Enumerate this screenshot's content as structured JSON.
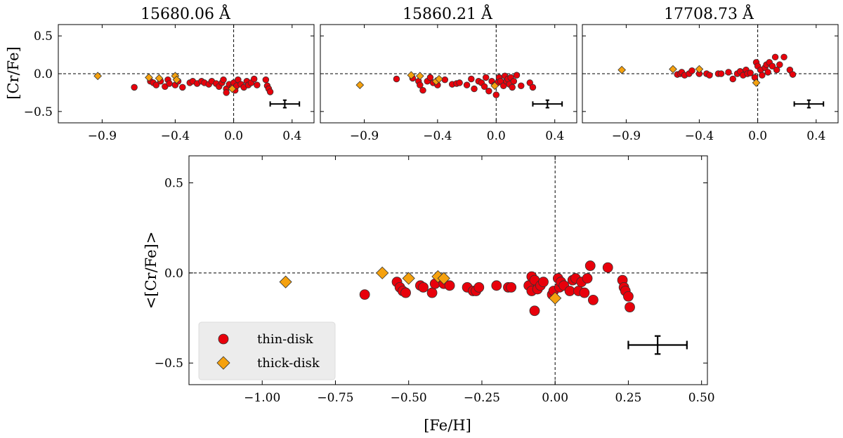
{
  "chart_data": [
    {
      "type": "scatter",
      "title": "15680.06 Å",
      "xlabel": "",
      "ylabel": "[Cr/Fe]",
      "xlim": [
        -1.2,
        0.55
      ],
      "ylim": [
        -0.65,
        0.65
      ],
      "xticks": [
        -0.9,
        -0.4,
        0.0,
        0.4
      ],
      "xtick_labels": [
        "−0.9",
        "−0.4",
        "0.0",
        "0.4"
      ],
      "yticks": [
        0.5,
        0.0,
        -0.5
      ],
      "ytick_labels": [
        "0.5",
        "0.0",
        "−0.5"
      ],
      "reference_lines": {
        "x": 0.0,
        "y": 0.0
      },
      "series": [
        {
          "name": "thin-disk",
          "color": "#e8000b",
          "marker": "circle",
          "points": [
            [
              -0.68,
              -0.18
            ],
            [
              -0.57,
              -0.1
            ],
            [
              -0.55,
              -0.12
            ],
            [
              -0.53,
              -0.15
            ],
            [
              -0.5,
              -0.1
            ],
            [
              -0.47,
              -0.17
            ],
            [
              -0.45,
              -0.08
            ],
            [
              -0.44,
              -0.13
            ],
            [
              -0.4,
              -0.15
            ],
            [
              -0.38,
              -0.1
            ],
            [
              -0.35,
              -0.18
            ],
            [
              -0.3,
              -0.12
            ],
            [
              -0.28,
              -0.1
            ],
            [
              -0.25,
              -0.13
            ],
            [
              -0.22,
              -0.1
            ],
            [
              -0.2,
              -0.12
            ],
            [
              -0.17,
              -0.14
            ],
            [
              -0.15,
              -0.1
            ],
            [
              -0.12,
              -0.13
            ],
            [
              -0.1,
              -0.17
            ],
            [
              -0.08,
              -0.12
            ],
            [
              -0.07,
              -0.08
            ],
            [
              -0.05,
              -0.2
            ],
            [
              -0.05,
              -0.25
            ],
            [
              -0.03,
              -0.14
            ],
            [
              -0.01,
              -0.18
            ],
            [
              0.0,
              -0.12
            ],
            [
              0.01,
              -0.22
            ],
            [
              0.02,
              -0.16
            ],
            [
              0.03,
              -0.08
            ],
            [
              0.05,
              -0.14
            ],
            [
              0.07,
              -0.18
            ],
            [
              0.09,
              -0.1
            ],
            [
              0.1,
              -0.15
            ],
            [
              0.12,
              -0.12
            ],
            [
              0.14,
              -0.07
            ],
            [
              0.16,
              -0.15
            ],
            [
              0.22,
              -0.08
            ],
            [
              0.23,
              -0.16
            ],
            [
              0.24,
              -0.2
            ],
            [
              0.25,
              -0.24
            ]
          ]
        },
        {
          "name": "thick-disk",
          "color": "#f5a10e",
          "marker": "diamond",
          "points": [
            [
              -0.93,
              -0.03
            ],
            [
              -0.58,
              -0.05
            ],
            [
              -0.51,
              -0.06
            ],
            [
              -0.4,
              -0.03
            ],
            [
              -0.39,
              -0.08
            ],
            [
              -0.01,
              -0.2
            ]
          ]
        }
      ],
      "error_bar": {
        "x": 0.35,
        "y": -0.4,
        "xerr": 0.1,
        "yerr": 0.05
      }
    },
    {
      "type": "scatter",
      "title": "15860.21 Å",
      "xlim": [
        -1.2,
        0.55
      ],
      "ylim": [
        -0.65,
        0.65
      ],
      "xticks": [
        -0.9,
        -0.4,
        0.0,
        0.4
      ],
      "xtick_labels": [
        "−0.9",
        "−0.4",
        "0.0",
        "0.4"
      ],
      "reference_lines": {
        "x": 0.0,
        "y": 0.0
      },
      "series": [
        {
          "name": "thin-disk",
          "color": "#e8000b",
          "marker": "circle",
          "points": [
            [
              -0.68,
              -0.07
            ],
            [
              -0.57,
              -0.06
            ],
            [
              -0.53,
              -0.1
            ],
            [
              -0.52,
              -0.15
            ],
            [
              -0.5,
              -0.22
            ],
            [
              -0.47,
              -0.1
            ],
            [
              -0.45,
              -0.05
            ],
            [
              -0.43,
              -0.12
            ],
            [
              -0.4,
              -0.15
            ],
            [
              -0.35,
              -0.08
            ],
            [
              -0.3,
              -0.14
            ],
            [
              -0.27,
              -0.13
            ],
            [
              -0.25,
              -0.12
            ],
            [
              -0.2,
              -0.15
            ],
            [
              -0.17,
              -0.07
            ],
            [
              -0.15,
              -0.2
            ],
            [
              -0.12,
              -0.1
            ],
            [
              -0.1,
              -0.12
            ],
            [
              -0.08,
              -0.17
            ],
            [
              -0.07,
              -0.05
            ],
            [
              -0.05,
              -0.23
            ],
            [
              -0.03,
              -0.1
            ],
            [
              -0.01,
              -0.15
            ],
            [
              0.0,
              -0.28
            ],
            [
              0.01,
              -0.12
            ],
            [
              0.02,
              -0.05
            ],
            [
              0.03,
              -0.1
            ],
            [
              0.05,
              -0.16
            ],
            [
              0.06,
              -0.03
            ],
            [
              0.07,
              -0.1
            ],
            [
              0.08,
              -0.07
            ],
            [
              0.09,
              -0.14
            ],
            [
              0.1,
              -0.05
            ],
            [
              0.11,
              -0.18
            ],
            [
              0.12,
              -0.1
            ],
            [
              0.14,
              -0.02
            ],
            [
              0.17,
              -0.16
            ],
            [
              0.23,
              -0.12
            ],
            [
              0.25,
              -0.18
            ]
          ]
        },
        {
          "name": "thick-disk",
          "color": "#f5a10e",
          "marker": "diamond",
          "points": [
            [
              -0.93,
              -0.15
            ],
            [
              -0.58,
              -0.02
            ],
            [
              -0.52,
              -0.03
            ],
            [
              -0.41,
              -0.1
            ],
            [
              -0.39,
              -0.07
            ],
            [
              -0.01,
              -0.16
            ]
          ]
        }
      ],
      "error_bar": {
        "x": 0.35,
        "y": -0.4,
        "xerr": 0.1,
        "yerr": 0.05
      }
    },
    {
      "type": "scatter",
      "title": "17708.73 Å",
      "xlim": [
        -1.2,
        0.55
      ],
      "ylim": [
        -0.65,
        0.65
      ],
      "xticks": [
        -0.9,
        -0.4,
        0.0,
        0.4
      ],
      "xtick_labels": [
        "−0.9",
        "−0.4",
        "0.0",
        "0.4"
      ],
      "reference_lines": {
        "x": 0.0,
        "y": 0.0
      },
      "series": [
        {
          "name": "thin-disk",
          "color": "#e8000b",
          "marker": "circle",
          "points": [
            [
              -0.55,
              -0.01
            ],
            [
              -0.53,
              0.0
            ],
            [
              -0.52,
              0.02
            ],
            [
              -0.5,
              -0.02
            ],
            [
              -0.47,
              0.0
            ],
            [
              -0.45,
              0.04
            ],
            [
              -0.4,
              0.0
            ],
            [
              -0.35,
              0.0
            ],
            [
              -0.33,
              -0.02
            ],
            [
              -0.27,
              0.0
            ],
            [
              -0.25,
              0.0
            ],
            [
              -0.2,
              0.02
            ],
            [
              -0.17,
              -0.07
            ],
            [
              -0.14,
              0.0
            ],
            [
              -0.12,
              0.03
            ],
            [
              -0.1,
              -0.02
            ],
            [
              -0.08,
              0.05
            ],
            [
              -0.07,
              0.0
            ],
            [
              -0.05,
              0.01
            ],
            [
              -0.02,
              -0.05
            ],
            [
              -0.01,
              0.15
            ],
            [
              0.0,
              0.1
            ],
            [
              0.02,
              0.05
            ],
            [
              0.03,
              -0.02
            ],
            [
              0.05,
              0.08
            ],
            [
              0.06,
              0.12
            ],
            [
              0.07,
              0.02
            ],
            [
              0.08,
              0.15
            ],
            [
              0.1,
              0.1
            ],
            [
              0.12,
              0.22
            ],
            [
              0.13,
              0.05
            ],
            [
              0.15,
              0.12
            ],
            [
              0.18,
              0.22
            ],
            [
              0.22,
              0.05
            ],
            [
              0.24,
              -0.01
            ]
          ]
        },
        {
          "name": "thick-disk",
          "color": "#f5a10e",
          "marker": "diamond",
          "points": [
            [
              -0.93,
              0.05
            ],
            [
              -0.58,
              0.06
            ],
            [
              -0.4,
              0.06
            ],
            [
              -0.01,
              -0.12
            ]
          ]
        }
      ],
      "error_bar": {
        "x": 0.35,
        "y": -0.4,
        "xerr": 0.1,
        "yerr": 0.05
      }
    },
    {
      "type": "scatter",
      "title": "",
      "xlabel": "[Fe/H]",
      "ylabel": "<[Cr/Fe]>",
      "xlim": [
        -1.25,
        0.52
      ],
      "ylim": [
        -0.62,
        0.65
      ],
      "xticks": [
        -1.0,
        -0.75,
        -0.5,
        -0.25,
        0.0,
        0.25,
        0.5
      ],
      "xtick_labels": [
        "−1.00",
        "−0.75",
        "−0.50",
        "−0.25",
        "0.00",
        "0.25",
        "0.50"
      ],
      "yticks": [
        0.5,
        0.0,
        -0.5
      ],
      "ytick_labels": [
        "0.5",
        "0.0",
        "−0.5"
      ],
      "reference_lines": {
        "x": 0.0,
        "y": 0.0
      },
      "legend": {
        "position": "lower-left",
        "entries": [
          "thin-disk",
          "thick-disk"
        ]
      },
      "series": [
        {
          "name": "thin-disk",
          "color": "#e8000b",
          "marker": "circle",
          "points": [
            [
              -0.65,
              -0.12
            ],
            [
              -0.54,
              -0.05
            ],
            [
              -0.53,
              -0.08
            ],
            [
              -0.52,
              -0.1
            ],
            [
              -0.51,
              -0.11
            ],
            [
              -0.46,
              -0.07
            ],
            [
              -0.45,
              -0.08
            ],
            [
              -0.42,
              -0.11
            ],
            [
              -0.41,
              -0.06
            ],
            [
              -0.38,
              -0.06
            ],
            [
              -0.36,
              -0.07
            ],
            [
              -0.3,
              -0.08
            ],
            [
              -0.28,
              -0.1
            ],
            [
              -0.27,
              -0.1
            ],
            [
              -0.26,
              -0.08
            ],
            [
              -0.2,
              -0.07
            ],
            [
              -0.16,
              -0.08
            ],
            [
              -0.15,
              -0.08
            ],
            [
              -0.09,
              -0.07
            ],
            [
              -0.08,
              -0.02
            ],
            [
              -0.08,
              -0.1
            ],
            [
              -0.07,
              -0.04
            ],
            [
              -0.07,
              -0.21
            ],
            [
              -0.06,
              -0.09
            ],
            [
              -0.05,
              -0.07
            ],
            [
              -0.04,
              -0.05
            ],
            [
              -0.01,
              -0.12
            ],
            [
              -0.005,
              -0.1
            ],
            [
              0.01,
              -0.03
            ],
            [
              0.015,
              -0.08
            ],
            [
              0.02,
              -0.05
            ],
            [
              0.03,
              -0.07
            ],
            [
              0.05,
              -0.1
            ],
            [
              0.06,
              -0.04
            ],
            [
              0.07,
              -0.03
            ],
            [
              0.08,
              -0.1
            ],
            [
              0.09,
              -0.05
            ],
            [
              0.1,
              -0.11
            ],
            [
              0.11,
              -0.03
            ],
            [
              0.12,
              0.04
            ],
            [
              0.13,
              -0.15
            ],
            [
              0.18,
              0.03
            ],
            [
              0.23,
              -0.04
            ],
            [
              0.235,
              -0.08
            ],
            [
              0.24,
              -0.1
            ],
            [
              0.25,
              -0.13
            ],
            [
              0.255,
              -0.19
            ]
          ]
        },
        {
          "name": "thick-disk",
          "color": "#f5a10e",
          "marker": "diamond",
          "points": [
            [
              -0.92,
              -0.05
            ],
            [
              -0.59,
              0.0
            ],
            [
              -0.5,
              -0.03
            ],
            [
              -0.4,
              -0.02
            ],
            [
              -0.38,
              -0.03
            ],
            [
              0.0,
              -0.14
            ]
          ]
        }
      ],
      "error_bar": {
        "x": 0.35,
        "y": -0.4,
        "xerr": 0.1,
        "yerr": 0.05
      }
    }
  ]
}
